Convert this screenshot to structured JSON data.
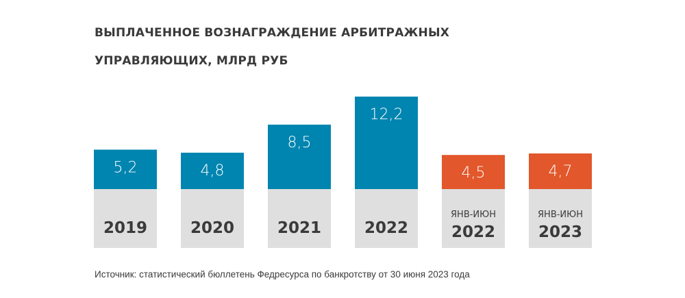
{
  "chart_data": {
    "type": "bar",
    "title": "ВЫПЛАЧЕННОЕ ВОЗНАГРАЖДЕНИЕ АРБИТРАЖНЫХ УПРАВЛЯЮЩИХ, МЛРД РУБ",
    "title_lines": [
      "ВЫПЛАЧЕННОЕ ВОЗНАГРАЖДЕНИЕ АРБИТРАЖНЫХ",
      "УПРАВЛЯЮЩИХ, МЛРД РУБ"
    ],
    "xlabel": "",
    "ylabel": "млрд руб",
    "grid": false,
    "categories": [
      {
        "period": "",
        "year": "2019"
      },
      {
        "period": "",
        "year": "2020"
      },
      {
        "period": "",
        "year": "2021"
      },
      {
        "period": "",
        "year": "2022"
      },
      {
        "period": "ЯНВ-ИЮН",
        "year": "2022"
      },
      {
        "period": "ЯНВ-ИЮН",
        "year": "2023"
      }
    ],
    "values": [
      5.2,
      4.8,
      8.5,
      12.2,
      4.5,
      4.7
    ],
    "value_labels": [
      "5,2",
      "4,8",
      "8,5",
      "12,2",
      "4,5",
      "4,7"
    ],
    "bar_colors": [
      "#0085b0",
      "#0085b0",
      "#0085b0",
      "#0085b0",
      "#e2572b",
      "#e2572b"
    ],
    "label_box_color": "#dfdfdf",
    "ylim": [
      0,
      12.2
    ]
  },
  "source": "Источник: статистический бюллетень Федресурса по банкротству от 30 июня 2023 года"
}
